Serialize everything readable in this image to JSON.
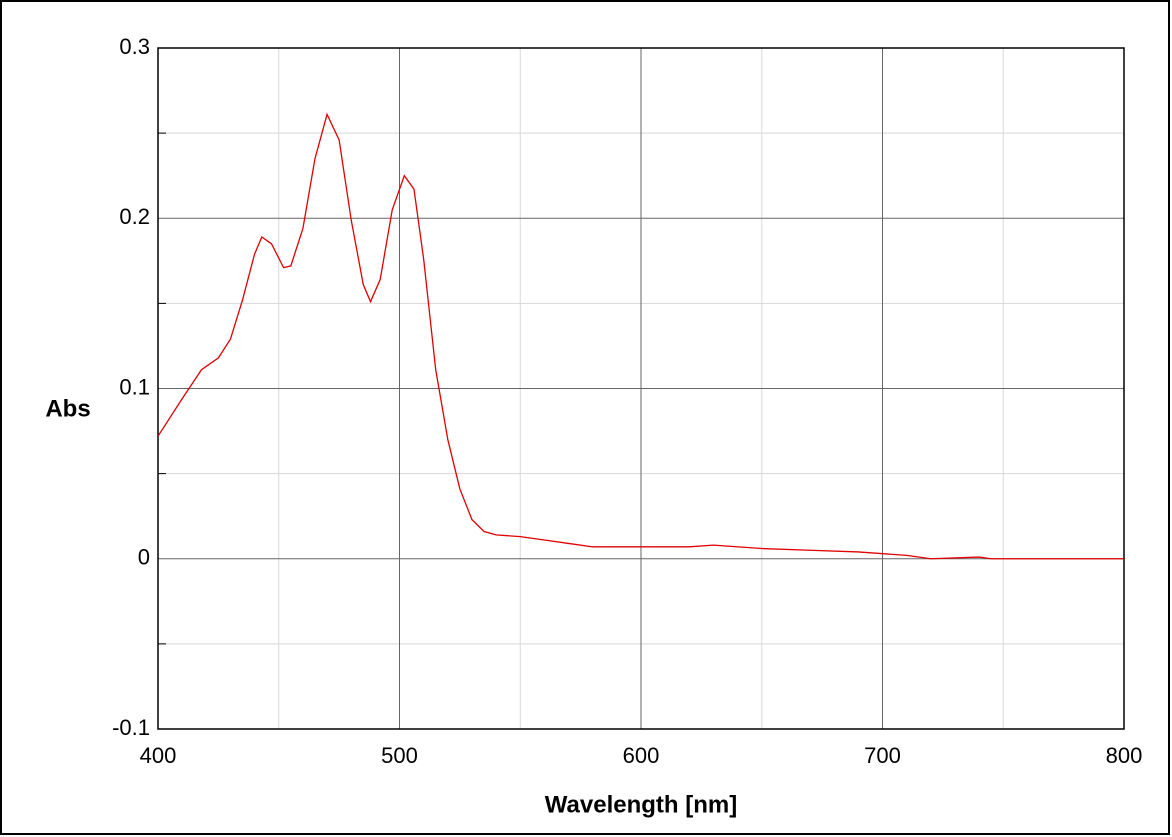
{
  "chart_data": {
    "type": "line",
    "x_label": "Wavelength [nm]",
    "y_label": "Abs",
    "x": [
      400,
      410,
      418,
      425,
      430,
      435,
      440,
      443,
      447,
      452,
      455,
      460,
      465,
      470,
      475,
      480,
      485,
      488,
      492,
      497,
      502,
      506,
      510,
      515,
      520,
      525,
      530,
      535,
      540,
      550,
      560,
      570,
      580,
      600,
      620,
      630,
      650,
      670,
      690,
      710,
      720,
      740,
      745,
      760,
      780,
      800
    ],
    "series": [
      {
        "name": "Abs",
        "color": "#e00000",
        "values": [
          0.072,
          0.094,
          0.111,
          0.118,
          0.129,
          0.152,
          0.179,
          0.189,
          0.185,
          0.171,
          0.172,
          0.194,
          0.235,
          0.261,
          0.246,
          0.199,
          0.161,
          0.151,
          0.164,
          0.205,
          0.225,
          0.217,
          0.176,
          0.111,
          0.07,
          0.041,
          0.023,
          0.016,
          0.014,
          0.013,
          0.011,
          0.009,
          0.007,
          0.007,
          0.007,
          0.008,
          0.006,
          0.005,
          0.004,
          0.002,
          0.0,
          0.001,
          0.0,
          0.0,
          0.0,
          0.0
        ]
      }
    ],
    "xlim": [
      400,
      800
    ],
    "ylim": [
      -0.1,
      0.3
    ],
    "xticks": [
      400,
      500,
      600,
      700,
      800
    ],
    "yticks": [
      -0.1,
      0,
      0.1,
      0.2,
      0.3
    ],
    "minor_xticks": [
      450,
      550,
      650,
      750
    ],
    "minor_yticks": [
      -0.05,
      0.05,
      0.15,
      0.25
    ],
    "grid": true
  }
}
